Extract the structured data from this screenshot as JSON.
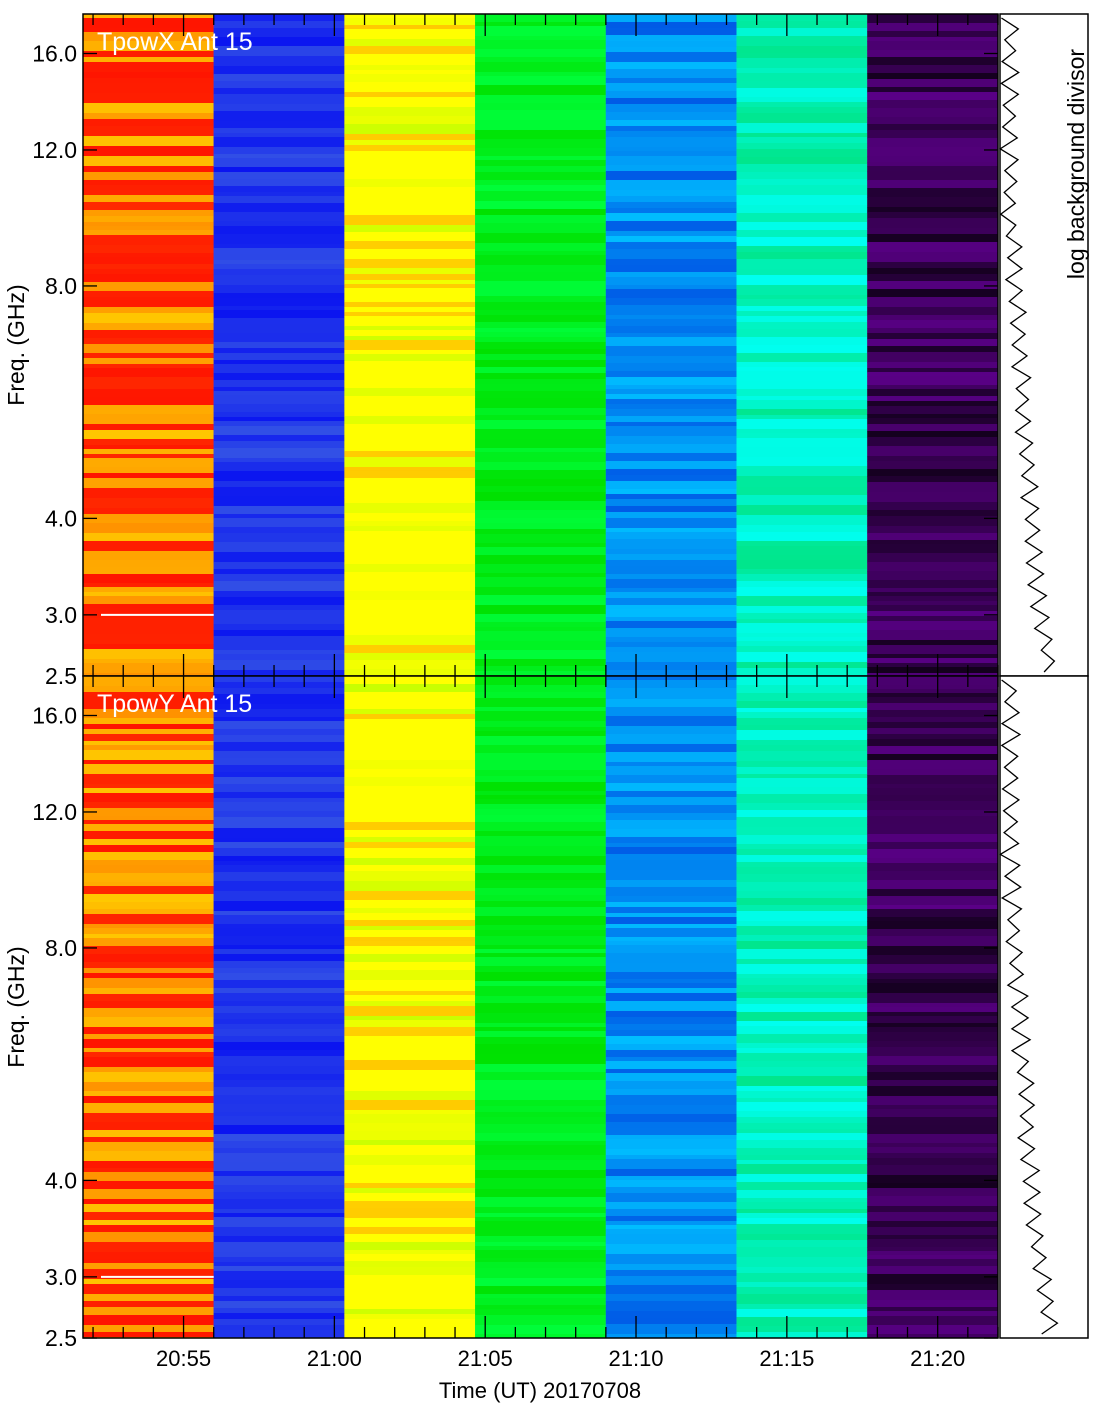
{
  "chart_data": [
    {
      "type": "heatmap",
      "title": "TpowX Ant 15",
      "ylabel": "Freq. (GHz)",
      "y_scale": "log",
      "ylim": [
        2.5,
        18.0
      ],
      "y_ticks": [
        "2.5",
        "3.0",
        "4.0",
        "8.0",
        "12.0",
        "16.0"
      ],
      "x_ticks": [
        "20:55",
        "21:00",
        "21:05",
        "21:10",
        "21:15",
        "21:20"
      ],
      "side_panel_label": "log background divisor",
      "segments": [
        {
          "start": "20:51:40",
          "end": "20:56:00",
          "color": "#ff2000"
        },
        {
          "start": "20:56:00",
          "end": "21:00:20",
          "color": "#1010ff"
        },
        {
          "start": "21:00:20",
          "end": "21:04:40",
          "color": "#ffff00"
        },
        {
          "start": "21:04:40",
          "end": "21:09:00",
          "color": "#00ff00"
        },
        {
          "start": "21:09:00",
          "end": "21:13:20",
          "color": "#0080ff"
        },
        {
          "start": "21:13:20",
          "end": "21:17:40",
          "color": "#00ffa0"
        },
        {
          "start": "21:17:40",
          "end": "21:22:00",
          "color": "#400060"
        }
      ]
    },
    {
      "type": "heatmap",
      "title": "TpowY Ant 15",
      "ylabel": "Freq. (GHz)",
      "y_scale": "log",
      "ylim": [
        2.5,
        18.0
      ],
      "y_ticks": [
        "2.5",
        "3.0",
        "4.0",
        "8.0",
        "12.0",
        "16.0"
      ],
      "x_ticks": [
        "20:55",
        "21:00",
        "21:05",
        "21:10",
        "21:15",
        "21:20"
      ],
      "segments": [
        {
          "start": "20:51:40",
          "end": "20:56:00",
          "color": "#ff2000"
        },
        {
          "start": "20:56:00",
          "end": "21:00:20",
          "color": "#1010ff"
        },
        {
          "start": "21:00:20",
          "end": "21:04:40",
          "color": "#ffff00"
        },
        {
          "start": "21:04:40",
          "end": "21:09:00",
          "color": "#00ff00"
        },
        {
          "start": "21:09:00",
          "end": "21:13:20",
          "color": "#0080ff"
        },
        {
          "start": "21:13:20",
          "end": "21:17:40",
          "color": "#00ffa0"
        },
        {
          "start": "21:17:40",
          "end": "21:22:00",
          "color": "#400060"
        }
      ]
    }
  ],
  "xlabel": "Time (UT) 20170708"
}
